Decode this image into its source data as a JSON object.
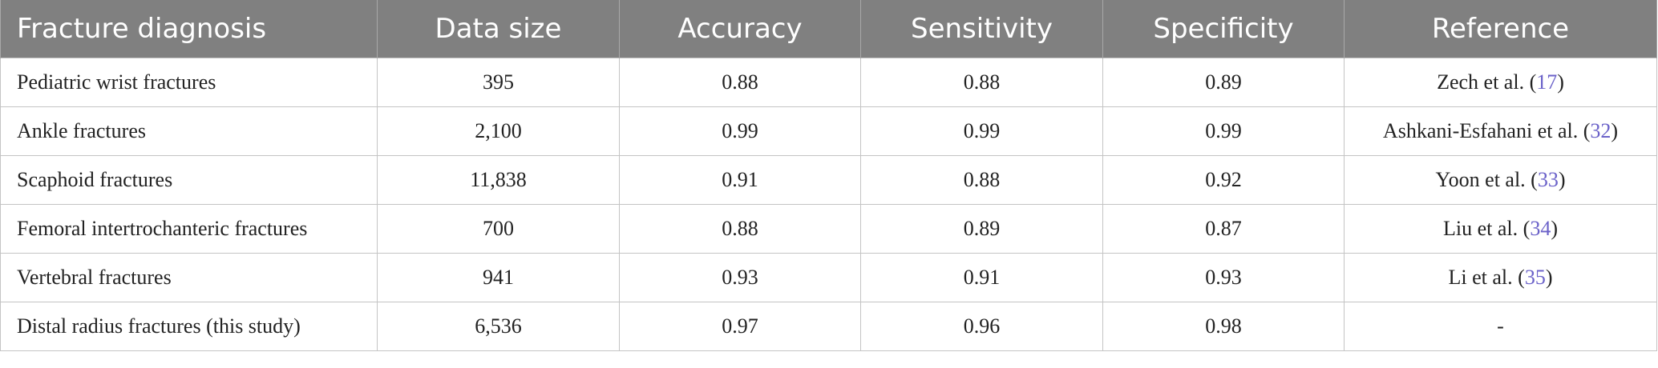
{
  "table": {
    "headers": [
      "Fracture diagnosis",
      "Data size",
      "Accuracy",
      "Sensitivity",
      "Specificity",
      "Reference"
    ],
    "rows": [
      {
        "diagnosis": "Pediatric wrist fractures",
        "data_size": "395",
        "accuracy": "0.88",
        "sensitivity": "0.88",
        "specificity": "0.89",
        "ref_author": "Zech et al. (",
        "ref_num": "17",
        "ref_close": ")"
      },
      {
        "diagnosis": "Ankle fractures",
        "data_size": "2,100",
        "accuracy": "0.99",
        "sensitivity": "0.99",
        "specificity": "0.99",
        "ref_author": "Ashkani-Esfahani et al. (",
        "ref_num": "32",
        "ref_close": ")"
      },
      {
        "diagnosis": "Scaphoid fractures",
        "data_size": "11,838",
        "accuracy": "0.91",
        "sensitivity": "0.88",
        "specificity": "0.92",
        "ref_author": "Yoon et al. (",
        "ref_num": "33",
        "ref_close": ")"
      },
      {
        "diagnosis": "Femoral intertrochanteric fractures",
        "data_size": "700",
        "accuracy": "0.88",
        "sensitivity": "0.89",
        "specificity": "0.87",
        "ref_author": "Liu et al. (",
        "ref_num": "34",
        "ref_close": ")"
      },
      {
        "diagnosis": "Vertebral fractures",
        "data_size": "941",
        "accuracy": "0.93",
        "sensitivity": "0.91",
        "specificity": "0.93",
        "ref_author": "Li et al. (",
        "ref_num": "35",
        "ref_close": ")"
      },
      {
        "diagnosis": "Distal radius fractures (this study)",
        "data_size": "6,536",
        "accuracy": "0.97",
        "sensitivity": "0.96",
        "specificity": "0.98",
        "ref_author": "-",
        "ref_num": "",
        "ref_close": ""
      }
    ]
  },
  "colors": {
    "header_bg": "#808080",
    "header_text": "#ffffff",
    "link": "#6b62c9",
    "border": "#c4c4c4"
  }
}
